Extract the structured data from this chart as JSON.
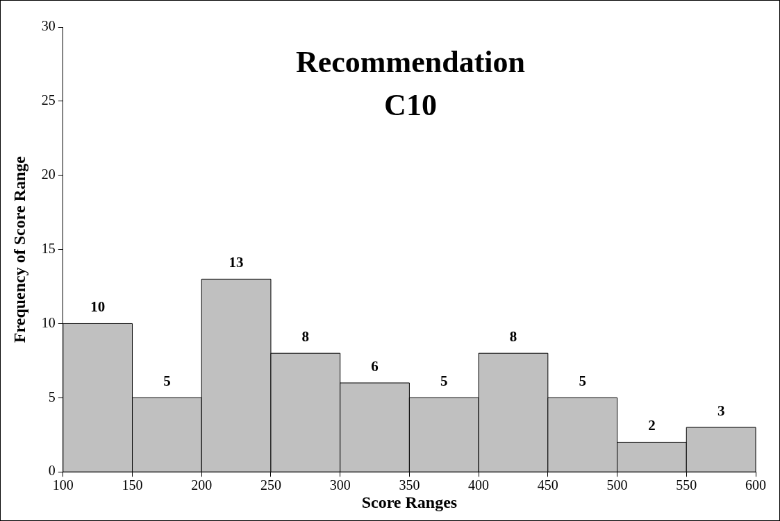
{
  "chart_data": {
    "type": "histogram",
    "title": "Recommendation C10",
    "xlabel": "Score Ranges",
    "ylabel": "Frequency of Score Range",
    "bins": [
      100,
      150,
      200,
      250,
      300,
      350,
      400,
      450,
      500,
      550,
      600
    ],
    "values": [
      10,
      5,
      13,
      8,
      6,
      5,
      8,
      5,
      2,
      3
    ],
    "color": "#c0c0c0",
    "xlim": [
      100,
      600
    ],
    "xticks": [
      100,
      150,
      200,
      250,
      300,
      350,
      400,
      450,
      500,
      550,
      600
    ],
    "ylim": [
      0,
      30
    ],
    "yticks": [
      0,
      5,
      10,
      15,
      20,
      25,
      30
    ],
    "data_labels": true,
    "grid": false,
    "legend": false
  }
}
